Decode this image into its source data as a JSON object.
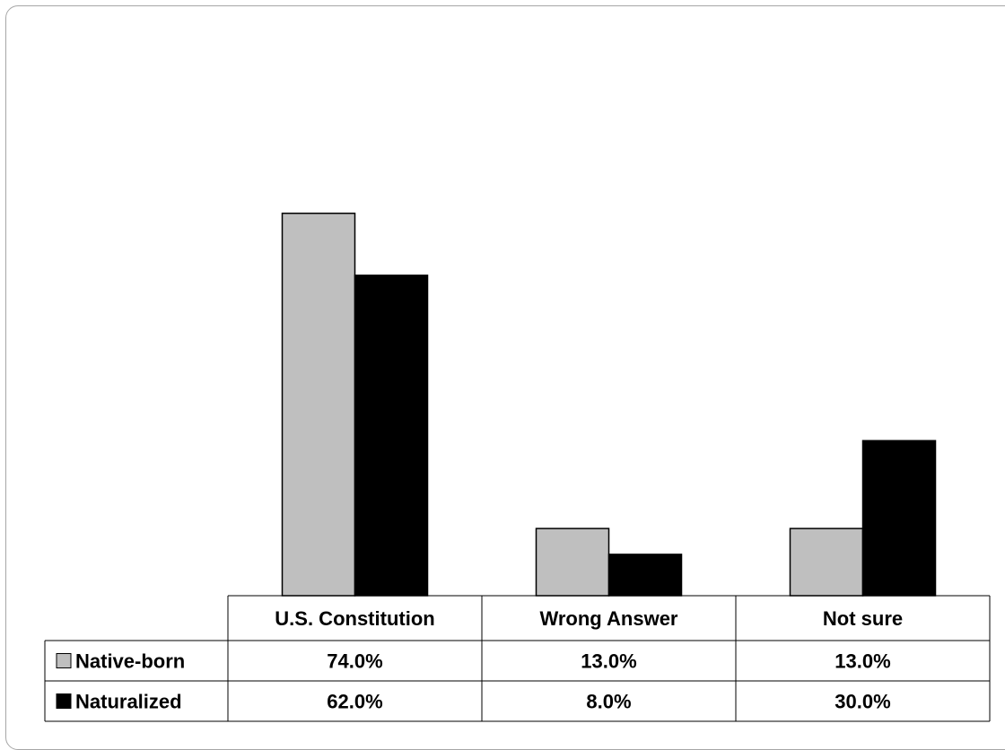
{
  "chart_data": {
    "type": "bar",
    "categories": [
      "U.S. Constitution",
      "Wrong Answer",
      "Not sure"
    ],
    "series": [
      {
        "name": "Native-born",
        "values": [
          74.0,
          13.0,
          13.0
        ],
        "labels": [
          "74.0%",
          "13.0%",
          "13.0%"
        ],
        "color": "#bfbfbf"
      },
      {
        "name": "Naturalized",
        "values": [
          62.0,
          8.0,
          30.0
        ],
        "labels": [
          "62.0%",
          "8.0%",
          "30.0%"
        ],
        "color": "#000000"
      }
    ],
    "ylim": [
      0,
      100
    ],
    "title": "",
    "xlabel": "",
    "ylabel": "",
    "grid": false,
    "legend": "data-table"
  }
}
